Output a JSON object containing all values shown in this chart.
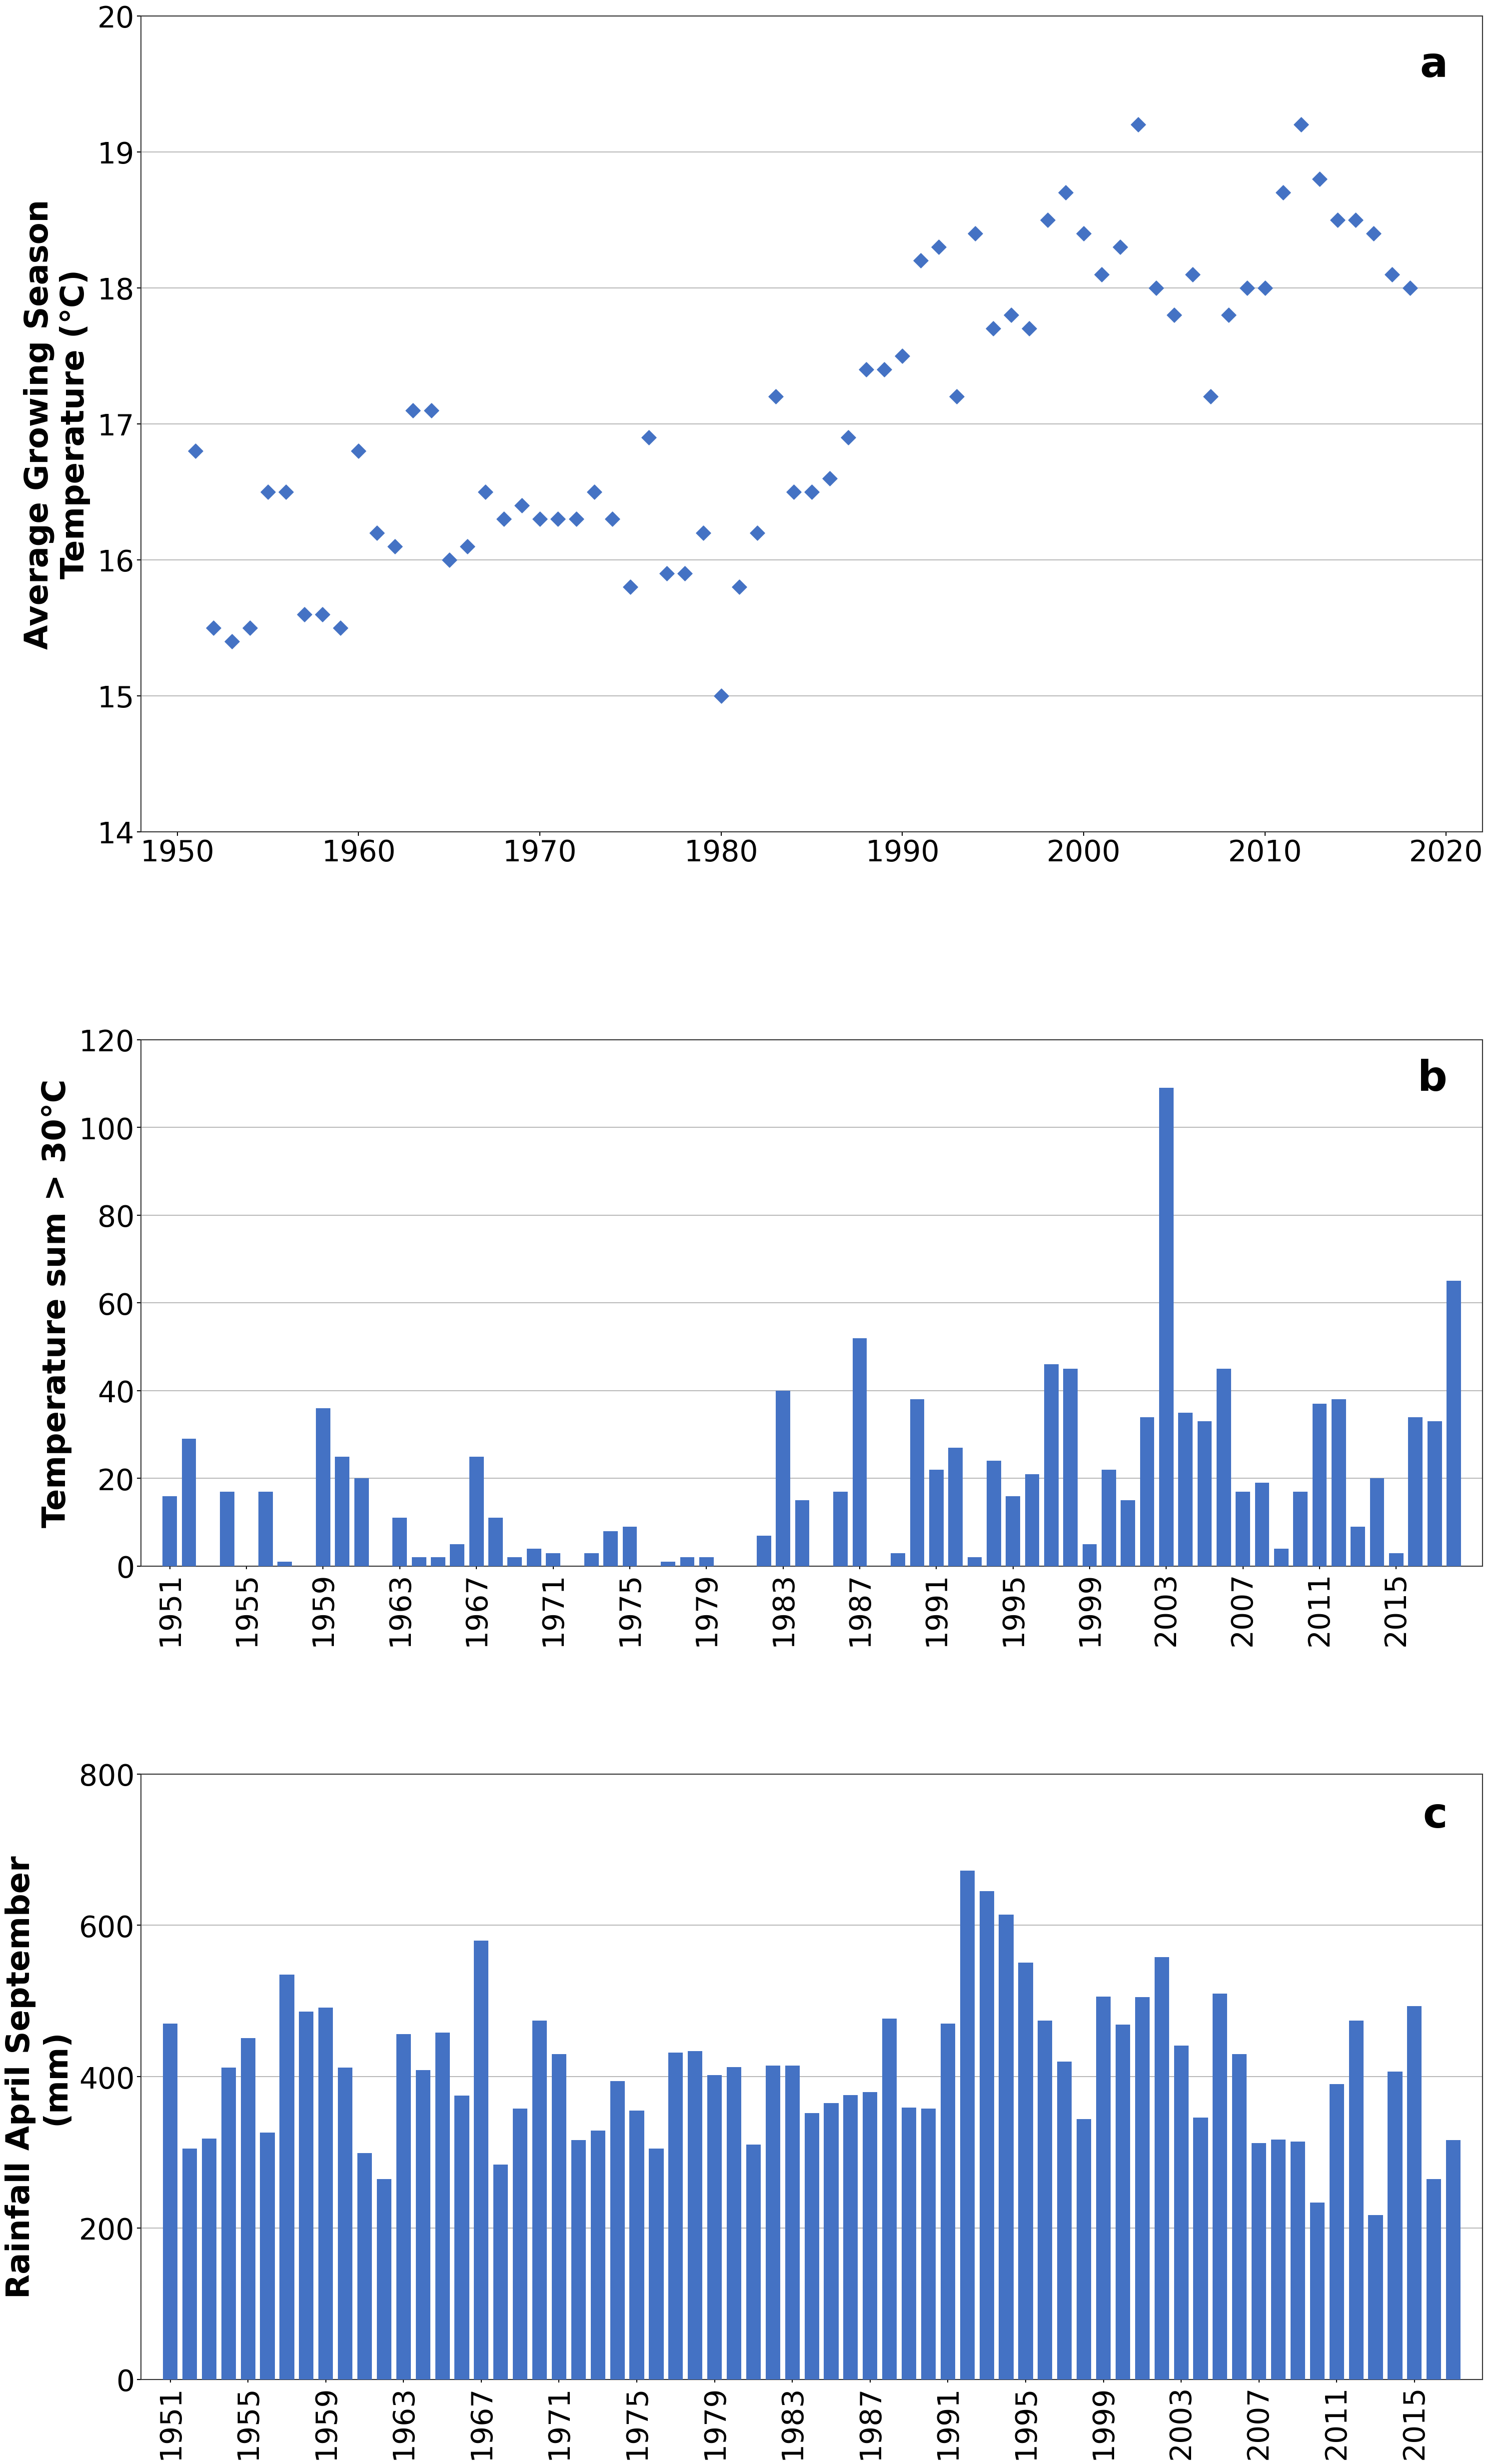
{
  "chart_a": {
    "title_label": "a",
    "ylabel": "Average Growing Season\nTemperature (°C)",
    "xlim": [
      1948,
      2022
    ],
    "ylim": [
      14,
      20
    ],
    "yticks": [
      14,
      15,
      16,
      17,
      18,
      19,
      20
    ],
    "xticks": [
      1950,
      1960,
      1970,
      1980,
      1990,
      2000,
      2010,
      2020
    ],
    "years": [
      1951,
      1952,
      1953,
      1954,
      1955,
      1956,
      1957,
      1958,
      1959,
      1960,
      1961,
      1962,
      1963,
      1964,
      1965,
      1966,
      1967,
      1968,
      1969,
      1970,
      1971,
      1972,
      1973,
      1974,
      1975,
      1976,
      1977,
      1978,
      1979,
      1980,
      1981,
      1982,
      1983,
      1984,
      1985,
      1986,
      1987,
      1988,
      1989,
      1990,
      1991,
      1992,
      1993,
      1994,
      1995,
      1996,
      1997,
      1998,
      1999,
      2000,
      2001,
      2002,
      2003,
      2004,
      2005,
      2006,
      2007,
      2008,
      2009,
      2010,
      2011,
      2012,
      2013,
      2014,
      2015,
      2016,
      2017,
      2018
    ],
    "temps": [
      16.8,
      15.5,
      15.4,
      15.5,
      16.5,
      16.5,
      15.6,
      15.6,
      15.5,
      16.8,
      16.2,
      16.1,
      17.1,
      17.1,
      16.0,
      16.1,
      16.5,
      16.3,
      16.4,
      16.3,
      16.3,
      16.3,
      16.5,
      16.3,
      15.8,
      16.9,
      15.9,
      15.9,
      16.2,
      15.0,
      15.8,
      16.2,
      17.2,
      16.5,
      16.5,
      16.6,
      16.9,
      17.4,
      17.4,
      17.5,
      18.2,
      18.3,
      17.2,
      18.4,
      17.7,
      17.8,
      17.7,
      18.5,
      18.7,
      18.4,
      18.1,
      18.3,
      19.2,
      18.0,
      17.8,
      18.1,
      17.2,
      17.8,
      18.0,
      18.0,
      18.7,
      19.2,
      18.8,
      18.5,
      18.5,
      18.4,
      18.1,
      18.0
    ],
    "marker_color": "#4472C4",
    "marker_size": 220
  },
  "chart_b": {
    "title_label": "b",
    "ylabel": "Temperature sum > 30°C",
    "ylim": [
      0,
      120
    ],
    "yticks": [
      0,
      20,
      40,
      60,
      80,
      100,
      120
    ],
    "years": [
      1951,
      1952,
      1953,
      1954,
      1955,
      1956,
      1957,
      1958,
      1959,
      1960,
      1961,
      1962,
      1963,
      1964,
      1965,
      1966,
      1967,
      1968,
      1969,
      1970,
      1971,
      1972,
      1973,
      1974,
      1975,
      1976,
      1977,
      1978,
      1979,
      1980,
      1981,
      1982,
      1983,
      1984,
      1985,
      1986,
      1987,
      1988,
      1989,
      1990,
      1991,
      1992,
      1993,
      1994,
      1995,
      1996,
      1997,
      1998,
      1999,
      2000,
      2001,
      2002,
      2003,
      2004,
      2005,
      2006,
      2007,
      2008,
      2009,
      2010,
      2011,
      2012,
      2013,
      2014,
      2015,
      2016,
      2017,
      2018
    ],
    "values": [
      16,
      29,
      0,
      17,
      0,
      17,
      1,
      0,
      36,
      25,
      20,
      0,
      11,
      2,
      2,
      5,
      25,
      11,
      2,
      4,
      3,
      0,
      3,
      8,
      9,
      0,
      1,
      2,
      2,
      0,
      0,
      7,
      40,
      15,
      0,
      17,
      52,
      0,
      3,
      38,
      22,
      27,
      2,
      24,
      16,
      21,
      46,
      45,
      5,
      22,
      15,
      34,
      109,
      35,
      33,
      45,
      17,
      19,
      4,
      17,
      37,
      38,
      9,
      20,
      3,
      34,
      33,
      65
    ],
    "xtick_years": [
      1951,
      1955,
      1959,
      1963,
      1967,
      1971,
      1975,
      1979,
      1983,
      1987,
      1991,
      1995,
      1999,
      2003,
      2007,
      2011,
      2015
    ],
    "bar_color": "#4472C4"
  },
  "chart_c": {
    "title_label": "c",
    "ylabel": "Rainfall April September\n(mm)",
    "ylim": [
      0,
      800
    ],
    "yticks": [
      0,
      200,
      400,
      600,
      800
    ],
    "years": [
      1951,
      1952,
      1953,
      1954,
      1955,
      1956,
      1957,
      1958,
      1959,
      1960,
      1961,
      1962,
      1963,
      1964,
      1965,
      1966,
      1967,
      1968,
      1969,
      1970,
      1971,
      1972,
      1973,
      1974,
      1975,
      1976,
      1977,
      1978,
      1979,
      1980,
      1981,
      1982,
      1983,
      1984,
      1985,
      1986,
      1987,
      1988,
      1989,
      1990,
      1991,
      1992,
      1993,
      1994,
      1995,
      1996,
      1997,
      1998,
      1999,
      2000,
      2001,
      2002,
      2003,
      2004,
      2005,
      2006,
      2007,
      2008,
      2009,
      2010,
      2011,
      2012,
      2013,
      2014,
      2015,
      2016,
      2017
    ],
    "values": [
      470,
      305,
      318,
      412,
      451,
      326,
      535,
      486,
      491,
      412,
      299,
      265,
      456,
      409,
      458,
      375,
      580,
      284,
      358,
      474,
      430,
      316,
      329,
      394,
      355,
      305,
      432,
      434,
      402,
      413,
      310,
      415,
      415,
      352,
      365,
      376,
      380,
      477,
      359,
      358,
      470,
      672,
      645,
      614,
      551,
      474,
      420,
      344,
      506,
      469,
      505,
      558,
      441,
      346,
      510,
      430,
      312,
      317,
      314,
      234,
      390,
      474,
      217,
      407,
      493,
      265,
      316
    ],
    "xtick_years": [
      1951,
      1955,
      1959,
      1963,
      1967,
      1971,
      1975,
      1979,
      1983,
      1987,
      1991,
      1995,
      1999,
      2003,
      2007,
      2011,
      2015
    ],
    "bar_color": "#4472C4"
  },
  "bg_color": "#ffffff",
  "box_color": "#333333",
  "grid_color": "#aaaaaa",
  "label_fontsize": 46,
  "tick_fontsize": 42,
  "title_label_fontsize": 60
}
